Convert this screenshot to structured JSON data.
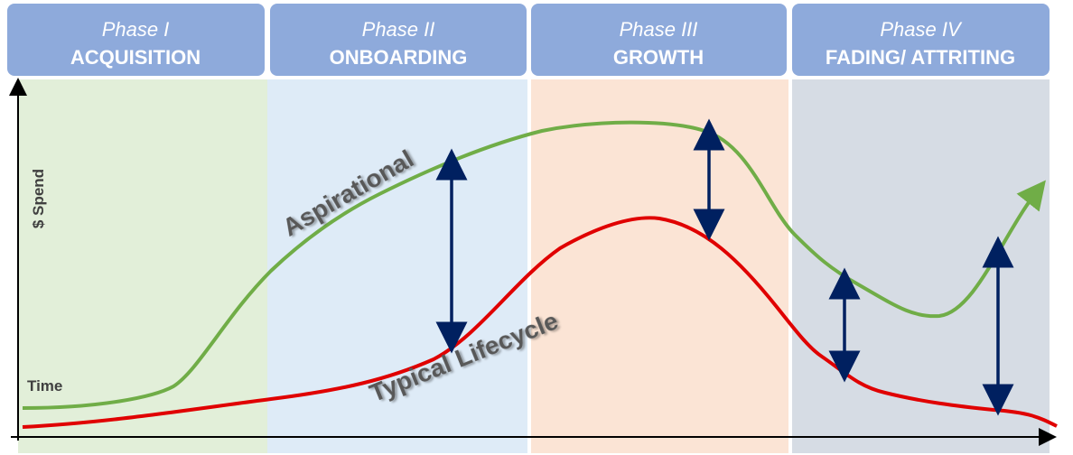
{
  "phases": [
    {
      "label": "Phase I",
      "name": "ACQUISITION"
    },
    {
      "label": "Phase II",
      "name": "ONBOARDING"
    },
    {
      "label": "Phase III",
      "name": "GROWTH"
    },
    {
      "label": "Phase IV",
      "name": "FADING/ ATTRITING"
    }
  ],
  "axes": {
    "y_label": "$ Spend",
    "x_label": "Time"
  },
  "curves": {
    "upper": "Aspirational",
    "lower": "Typical Lifecycle"
  }
}
